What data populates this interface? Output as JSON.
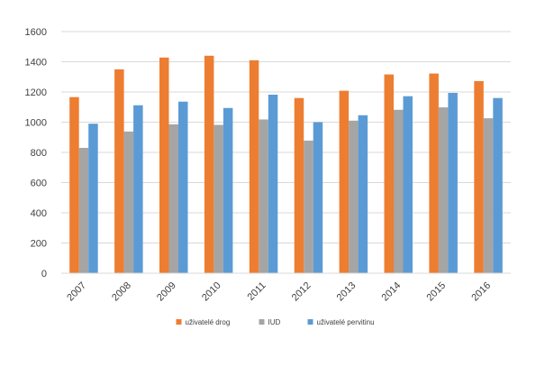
{
  "chart_data": {
    "type": "bar",
    "title": "",
    "xlabel": "",
    "ylabel": "",
    "categories": [
      "2007",
      "2008",
      "2009",
      "2010",
      "2011",
      "2012",
      "2013",
      "2014",
      "2015",
      "2016"
    ],
    "series": [
      {
        "name": "uživatelé drog",
        "color": "#ED7D31",
        "values": [
          1166,
          1350,
          1428,
          1440,
          1410,
          1160,
          1208,
          1316,
          1322,
          1272
        ]
      },
      {
        "name": "IUD",
        "color": "#A5A5A5",
        "values": [
          830,
          938,
          986,
          982,
          1018,
          878,
          1010,
          1082,
          1098,
          1026
        ]
      },
      {
        "name": "uživatelé pervitinu",
        "color": "#5B9BD5",
        "values": [
          990,
          1112,
          1136,
          1094,
          1182,
          1000,
          1046,
          1172,
          1194,
          1160
        ]
      }
    ],
    "y_ticks": [
      "0",
      "200",
      "400",
      "600",
      "800",
      "1000",
      "1200",
      "1400",
      "1600"
    ],
    "ylim": [
      0,
      1600
    ],
    "grid": true,
    "legend_position": "bottom"
  }
}
